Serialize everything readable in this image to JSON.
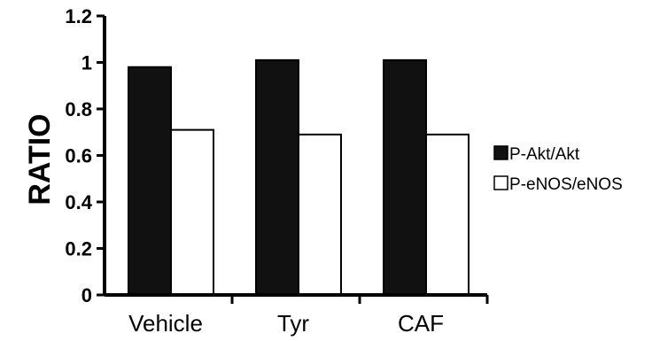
{
  "chart_data": {
    "type": "bar",
    "categories": [
      "Vehicle",
      "Tyr",
      "CAF"
    ],
    "series": [
      {
        "name": "P-Akt/Akt",
        "values": [
          0.98,
          1.01,
          1.01
        ],
        "color": "#111111"
      },
      {
        "name": "P-eNOS/eNOS",
        "values": [
          0.71,
          0.69,
          0.69
        ],
        "color": "#ffffff"
      }
    ],
    "ylabel": "RATIO",
    "xlabel": "",
    "ylim": [
      0,
      1.2
    ],
    "yticks": [
      "0",
      "0.2",
      "0.4",
      "0.6",
      "0.8",
      "1",
      "1.2"
    ],
    "legend_position": "right",
    "grid": false
  }
}
